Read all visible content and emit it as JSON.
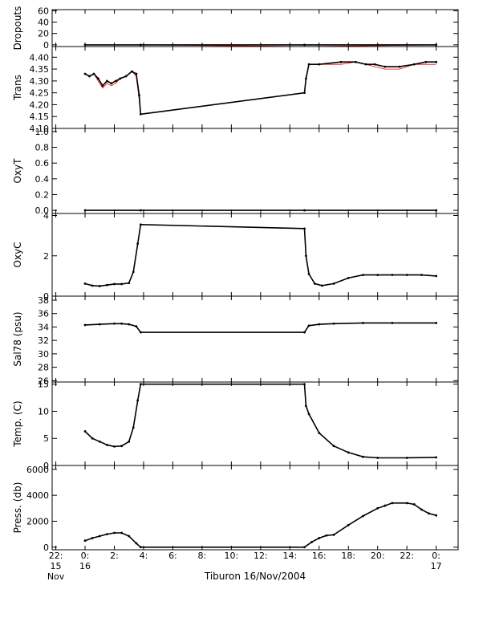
{
  "chart_data": {
    "type": "line",
    "xlabel": "Tiburon 16/Nov/2004",
    "x_ticks": [
      {
        "h": -2,
        "lines": [
          "22:",
          "15",
          "Nov"
        ]
      },
      {
        "h": 0,
        "lines": [
          "0:",
          "16"
        ]
      },
      {
        "h": 2,
        "lines": [
          "2:"
        ]
      },
      {
        "h": 4,
        "lines": [
          "4:"
        ]
      },
      {
        "h": 6,
        "lines": [
          "6:"
        ]
      },
      {
        "h": 8,
        "lines": [
          "8:"
        ]
      },
      {
        "h": 10,
        "lines": [
          "10:"
        ]
      },
      {
        "h": 12,
        "lines": [
          "12:"
        ]
      },
      {
        "h": 14,
        "lines": [
          "14:"
        ]
      },
      {
        "h": 16,
        "lines": [
          "16:"
        ]
      },
      {
        "h": 18,
        "lines": [
          "18:"
        ]
      },
      {
        "h": 20,
        "lines": [
          "20:"
        ]
      },
      {
        "h": 22,
        "lines": [
          "22:"
        ]
      },
      {
        "h": 24,
        "lines": [
          "0:",
          "17"
        ]
      }
    ],
    "xlim": [
      -2.25,
      25.5
    ],
    "colors": {
      "qc_line": "#ff0000",
      "data_points": "#000000"
    },
    "panels": [
      {
        "name": "dropouts",
        "ylabel": "Dropouts",
        "ylim": [
          -3,
          62
        ],
        "yticks": [
          0,
          20,
          40,
          60
        ],
        "ytick_labels": [
          "0",
          "20",
          "40",
          "60"
        ],
        "red": [
          [
            0,
            0
          ],
          [
            3.8,
            0
          ],
          [
            15.0,
            -3
          ],
          [
            24,
            0
          ]
        ],
        "black": [
          [
            0,
            0
          ],
          [
            3.8,
            0
          ],
          [
            15.0,
            0
          ],
          [
            24,
            0
          ]
        ]
      },
      {
        "name": "trans",
        "ylabel": "Trans",
        "ylim": [
          4.1,
          4.445
        ],
        "yticks": [
          4.1,
          4.15,
          4.2,
          4.25,
          4.3,
          4.35,
          4.4
        ],
        "ytick_labels": [
          "4.10",
          "4.15",
          "4.20",
          "4.25",
          "4.30",
          "4.35",
          "4.40"
        ],
        "red": [
          [
            0,
            4.33
          ],
          [
            0.3,
            4.32
          ],
          [
            0.6,
            4.33
          ],
          [
            0.9,
            4.3
          ],
          [
            1.2,
            4.27
          ],
          [
            1.5,
            4.29
          ],
          [
            1.8,
            4.28
          ],
          [
            2.1,
            4.29
          ],
          [
            2.4,
            4.31
          ],
          [
            2.8,
            4.32
          ],
          [
            3.2,
            4.34
          ],
          [
            3.5,
            4.32
          ],
          [
            3.7,
            4.22
          ],
          [
            3.8,
            4.16
          ],
          [
            15.0,
            4.25
          ],
          [
            15.1,
            4.3
          ],
          [
            15.3,
            4.37
          ],
          [
            16.0,
            4.37
          ],
          [
            17.5,
            4.37
          ],
          [
            18.5,
            4.38
          ],
          [
            19.2,
            4.37
          ],
          [
            19.8,
            4.36
          ],
          [
            20.5,
            4.35
          ],
          [
            21.5,
            4.35
          ],
          [
            22.5,
            4.37
          ],
          [
            23.3,
            4.37
          ],
          [
            24,
            4.37
          ]
        ],
        "black": [
          [
            0,
            4.33
          ],
          [
            0.3,
            4.32
          ],
          [
            0.6,
            4.33
          ],
          [
            0.9,
            4.31
          ],
          [
            1.2,
            4.28
          ],
          [
            1.5,
            4.3
          ],
          [
            1.8,
            4.29
          ],
          [
            2.1,
            4.3
          ],
          [
            2.4,
            4.31
          ],
          [
            2.8,
            4.32
          ],
          [
            3.2,
            4.34
          ],
          [
            3.5,
            4.33
          ],
          [
            3.7,
            4.24
          ],
          [
            3.8,
            4.16
          ],
          [
            15.0,
            4.25
          ],
          [
            15.1,
            4.31
          ],
          [
            15.3,
            4.37
          ],
          [
            16.0,
            4.37
          ],
          [
            17.5,
            4.38
          ],
          [
            18.5,
            4.38
          ],
          [
            19.2,
            4.37
          ],
          [
            19.8,
            4.37
          ],
          [
            20.5,
            4.36
          ],
          [
            21.5,
            4.36
          ],
          [
            22.5,
            4.37
          ],
          [
            23.3,
            4.38
          ],
          [
            24,
            4.38
          ]
        ]
      },
      {
        "name": "oxyt",
        "ylabel": "OxyT",
        "ylim": [
          -0.04,
          1.04
        ],
        "yticks": [
          0.0,
          0.2,
          0.4,
          0.6,
          0.8,
          1.0
        ],
        "ytick_labels": [
          "0.0",
          "0.2",
          "0.4",
          "0.6",
          "0.8",
          "1.0"
        ],
        "red": [
          [
            0,
            0
          ],
          [
            24,
            0
          ]
        ],
        "black": [
          [
            0,
            0
          ],
          [
            3.8,
            0
          ],
          [
            15.0,
            0
          ],
          [
            24,
            0
          ]
        ]
      },
      {
        "name": "oxyc",
        "ylabel": "OxyC",
        "ylim": [
          0,
          4.1
        ],
        "yticks": [
          0,
          2,
          4
        ],
        "ytick_labels": [
          "0",
          "2",
          "4"
        ],
        "red": [
          [
            0,
            0.62
          ],
          [
            0.5,
            0.52
          ],
          [
            1.0,
            0.5
          ],
          [
            1.5,
            0.55
          ],
          [
            2.0,
            0.6
          ],
          [
            2.5,
            0.6
          ],
          [
            3.0,
            0.65
          ],
          [
            3.3,
            1.2
          ],
          [
            3.6,
            2.6
          ],
          [
            3.8,
            3.55
          ],
          [
            15.0,
            3.35
          ],
          [
            15.1,
            2.0
          ],
          [
            15.3,
            1.1
          ],
          [
            15.7,
            0.62
          ],
          [
            16.2,
            0.52
          ],
          [
            17.0,
            0.62
          ],
          [
            18.0,
            0.9
          ],
          [
            19.0,
            1.05
          ],
          [
            20.0,
            1.05
          ],
          [
            21.0,
            1.05
          ],
          [
            22.0,
            1.05
          ],
          [
            23.0,
            1.05
          ],
          [
            24,
            1.0
          ]
        ],
        "black": [
          [
            0,
            0.62
          ],
          [
            0.5,
            0.52
          ],
          [
            1.0,
            0.5
          ],
          [
            1.5,
            0.55
          ],
          [
            2.0,
            0.6
          ],
          [
            2.5,
            0.6
          ],
          [
            3.0,
            0.65
          ],
          [
            3.3,
            1.2
          ],
          [
            3.6,
            2.6
          ],
          [
            3.8,
            3.55
          ],
          [
            15.0,
            3.35
          ],
          [
            15.1,
            2.0
          ],
          [
            15.3,
            1.1
          ],
          [
            15.7,
            0.62
          ],
          [
            16.2,
            0.52
          ],
          [
            17.0,
            0.62
          ],
          [
            18.0,
            0.9
          ],
          [
            19.0,
            1.05
          ],
          [
            20.0,
            1.05
          ],
          [
            21.0,
            1.05
          ],
          [
            22.0,
            1.05
          ],
          [
            23.0,
            1.05
          ],
          [
            24,
            1.0
          ]
        ]
      },
      {
        "name": "sal78",
        "ylabel": "Sal78 (psu)",
        "ylim": [
          25.8,
          38.6
        ],
        "yticks": [
          26,
          28,
          30,
          32,
          34,
          36,
          38
        ],
        "ytick_labels": [
          "26",
          "28",
          "30",
          "32",
          "34",
          "36",
          "38"
        ],
        "red": [
          [
            0,
            34.3
          ],
          [
            1.0,
            34.4
          ],
          [
            2.0,
            34.5
          ],
          [
            2.5,
            34.5
          ],
          [
            3.0,
            34.4
          ],
          [
            3.5,
            34.1
          ],
          [
            3.8,
            33.2
          ],
          [
            15.0,
            33.2
          ],
          [
            15.3,
            34.2
          ],
          [
            16.0,
            34.4
          ],
          [
            17.0,
            34.5
          ],
          [
            19.0,
            34.6
          ],
          [
            21.0,
            34.6
          ],
          [
            24,
            34.6
          ]
        ],
        "black": [
          [
            0,
            34.3
          ],
          [
            1.0,
            34.4
          ],
          [
            2.0,
            34.5
          ],
          [
            2.5,
            34.5
          ],
          [
            3.0,
            34.4
          ],
          [
            3.5,
            34.1
          ],
          [
            3.8,
            33.2
          ],
          [
            15.0,
            33.2
          ],
          [
            15.3,
            34.2
          ],
          [
            16.0,
            34.4
          ],
          [
            17.0,
            34.5
          ],
          [
            19.0,
            34.6
          ],
          [
            21.0,
            34.6
          ],
          [
            24,
            34.6
          ]
        ]
      },
      {
        "name": "temp",
        "ylabel": "Temp. (C)",
        "ylim": [
          0,
          15.4
        ],
        "yticks": [
          0,
          5,
          10,
          15
        ],
        "ytick_labels": [
          "0",
          "5",
          "10",
          "15"
        ],
        "red": [
          [
            0,
            6.3
          ],
          [
            0.5,
            5.0
          ],
          [
            1.0,
            4.4
          ],
          [
            1.5,
            3.8
          ],
          [
            2.0,
            3.5
          ],
          [
            2.5,
            3.6
          ],
          [
            3.0,
            4.4
          ],
          [
            3.3,
            7.0
          ],
          [
            3.6,
            12.0
          ],
          [
            3.8,
            15.0
          ],
          [
            15.0,
            15.0
          ],
          [
            15.1,
            11.0
          ],
          [
            15.3,
            9.5
          ],
          [
            16.0,
            6.0
          ],
          [
            17.0,
            3.6
          ],
          [
            18.0,
            2.4
          ],
          [
            19.0,
            1.6
          ],
          [
            20.0,
            1.4
          ],
          [
            22.0,
            1.4
          ],
          [
            24,
            1.5
          ]
        ],
        "black": [
          [
            0,
            6.3
          ],
          [
            0.5,
            5.0
          ],
          [
            1.0,
            4.4
          ],
          [
            1.5,
            3.8
          ],
          [
            2.0,
            3.5
          ],
          [
            2.5,
            3.6
          ],
          [
            3.0,
            4.4
          ],
          [
            3.3,
            7.0
          ],
          [
            3.6,
            12.0
          ],
          [
            3.8,
            15.0
          ],
          [
            15.0,
            15.0
          ],
          [
            15.1,
            11.0
          ],
          [
            15.3,
            9.5
          ],
          [
            16.0,
            6.0
          ],
          [
            17.0,
            3.6
          ],
          [
            18.0,
            2.4
          ],
          [
            19.0,
            1.6
          ],
          [
            20.0,
            1.4
          ],
          [
            22.0,
            1.4
          ],
          [
            24,
            1.5
          ]
        ]
      },
      {
        "name": "press",
        "ylabel": "Press. (db)",
        "ylim": [
          -200,
          6300
        ],
        "yticks": [
          0,
          2000,
          4000,
          6000
        ],
        "ytick_labels": [
          "0",
          "2000",
          "4000",
          "6000"
        ],
        "red": [
          [
            0,
            500
          ],
          [
            0.5,
            700
          ],
          [
            1.0,
            850
          ],
          [
            1.5,
            1000
          ],
          [
            2.0,
            1100
          ],
          [
            2.5,
            1100
          ],
          [
            3.0,
            850
          ],
          [
            3.5,
            300
          ],
          [
            3.8,
            0
          ],
          [
            15.0,
            0
          ],
          [
            15.5,
            400
          ],
          [
            16.0,
            700
          ],
          [
            16.5,
            900
          ],
          [
            17.0,
            950
          ],
          [
            18.0,
            1700
          ],
          [
            19.0,
            2400
          ],
          [
            20.0,
            3000
          ],
          [
            20.5,
            3200
          ],
          [
            21.0,
            3400
          ],
          [
            22.0,
            3400
          ],
          [
            22.5,
            3300
          ],
          [
            23.0,
            2900
          ],
          [
            23.5,
            2600
          ],
          [
            24,
            2450
          ]
        ],
        "black": [
          [
            0,
            500
          ],
          [
            0.5,
            700
          ],
          [
            1.0,
            850
          ],
          [
            1.5,
            1000
          ],
          [
            2.0,
            1100
          ],
          [
            2.5,
            1100
          ],
          [
            3.0,
            850
          ],
          [
            3.5,
            300
          ],
          [
            3.8,
            0
          ],
          [
            15.0,
            0
          ],
          [
            15.5,
            400
          ],
          [
            16.0,
            700
          ],
          [
            16.5,
            900
          ],
          [
            17.0,
            950
          ],
          [
            18.0,
            1700
          ],
          [
            19.0,
            2400
          ],
          [
            20.0,
            3000
          ],
          [
            20.5,
            3200
          ],
          [
            21.0,
            3400
          ],
          [
            22.0,
            3400
          ],
          [
            22.5,
            3300
          ],
          [
            23.0,
            2900
          ],
          [
            23.5,
            2600
          ],
          [
            24,
            2450
          ]
        ]
      }
    ]
  }
}
